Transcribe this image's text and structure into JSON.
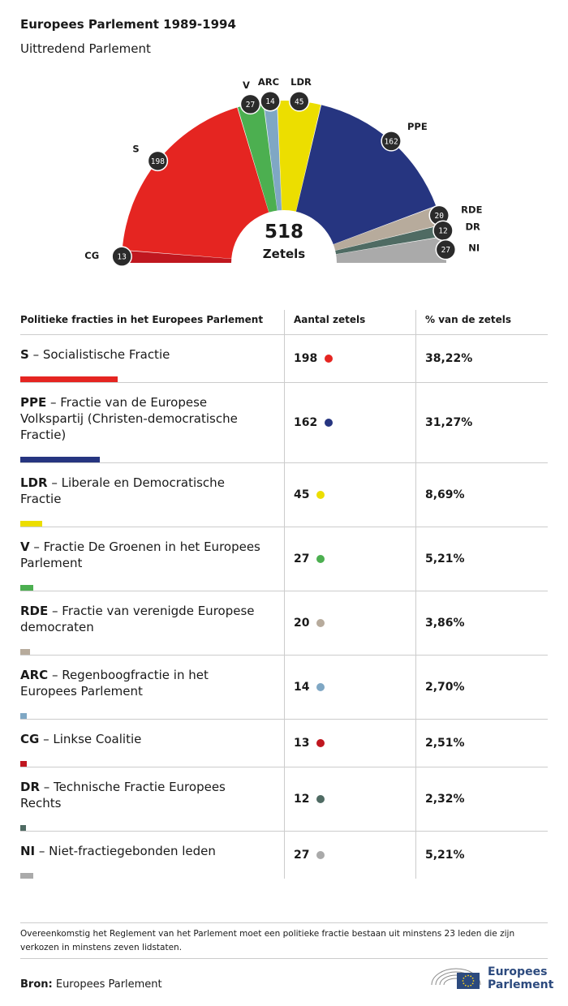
{
  "header": {
    "title": "Europees Parlement 1989-1994",
    "subtitle": "Uittredend Parlement"
  },
  "chart_data": {
    "type": "pie",
    "variant": "parliament-hemicycle",
    "title": "Europees Parlement 1989-1994",
    "subtitle": "Uittredend Parlement",
    "total": {
      "value": "518",
      "label": "Zetels"
    },
    "order": [
      "CG",
      "S",
      "V",
      "ARC",
      "LDR",
      "PPE",
      "RDE",
      "DR",
      "NI"
    ],
    "series": [
      {
        "name": "CG",
        "label": "CG",
        "seats": 13,
        "color": "#c0171f"
      },
      {
        "name": "S",
        "label": "S",
        "seats": 198,
        "color": "#e52521"
      },
      {
        "name": "V",
        "label": "V",
        "seats": 27,
        "color": "#4caf50"
      },
      {
        "name": "ARC",
        "label": "ARC",
        "seats": 14,
        "color": "#7fa7c4"
      },
      {
        "name": "LDR",
        "label": "LDR",
        "seats": 45,
        "color": "#ecde00"
      },
      {
        "name": "PPE",
        "label": "PPE",
        "seats": 162,
        "color": "#263580"
      },
      {
        "name": "RDE",
        "label": "RDE",
        "seats": 20,
        "color": "#b7ab9c"
      },
      {
        "name": "DR",
        "label": "DR",
        "seats": 12,
        "color": "#4f6b63"
      },
      {
        "name": "NI",
        "label": "NI",
        "seats": 27,
        "color": "#aaaaaa"
      }
    ]
  },
  "table": {
    "headers": [
      "Politieke fracties in het Europees Parlement",
      "Aantal zetels",
      "% van de zetels"
    ],
    "rows": [
      {
        "abbr": "S",
        "name": " – Socialistische Fractie",
        "seats": "198",
        "pct": "38,22%",
        "share": 0.3822,
        "color": "#e52521"
      },
      {
        "abbr": "PPE",
        "name": " – Fractie van de Europese Volkspartij (Christen-democratische Fractie)",
        "seats": "162",
        "pct": "31,27%",
        "share": 0.3127,
        "color": "#263580"
      },
      {
        "abbr": "LDR",
        "name": " – Liberale en Democratische Fractie",
        "seats": "45",
        "pct": "8,69%",
        "share": 0.0869,
        "color": "#ecde00"
      },
      {
        "abbr": "V",
        "name": " – Fractie De Groenen in het Europees Parlement",
        "seats": "27",
        "pct": "5,21%",
        "share": 0.0521,
        "color": "#4caf50"
      },
      {
        "abbr": "RDE",
        "name": " – Fractie van verenigde Europese democraten",
        "seats": "20",
        "pct": "3,86%",
        "share": 0.0386,
        "color": "#b7ab9c"
      },
      {
        "abbr": "ARC",
        "name": " – Regenboogfractie in het Europees Parlement",
        "seats": "14",
        "pct": "2,70%",
        "share": 0.027,
        "color": "#7fa7c4"
      },
      {
        "abbr": "CG",
        "name": " – Linkse Coalitie",
        "seats": "13",
        "pct": "2,51%",
        "share": 0.0251,
        "color": "#c0171f"
      },
      {
        "abbr": "DR",
        "name": " – Technische Fractie Europees Rechts",
        "seats": "12",
        "pct": "2,32%",
        "share": 0.0232,
        "color": "#4f6b63"
      },
      {
        "abbr": "NI",
        "name": " – Niet-fractiegebonden leden",
        "seats": "27",
        "pct": "5,21%",
        "share": 0.0521,
        "color": "#aaaaaa"
      }
    ]
  },
  "footer": {
    "note": "Overeenkomstig het Reglement van het Parlement moet een politieke fractie bestaan uit minstens 23 leden die zijn verkozen in minstens zeven lidstaten.",
    "source_label": "Bron:",
    "source_value": " Europees Parlement",
    "logo_line1": "Europees",
    "logo_line2": "Parlement",
    "logo_color": "#2c4a7e"
  }
}
